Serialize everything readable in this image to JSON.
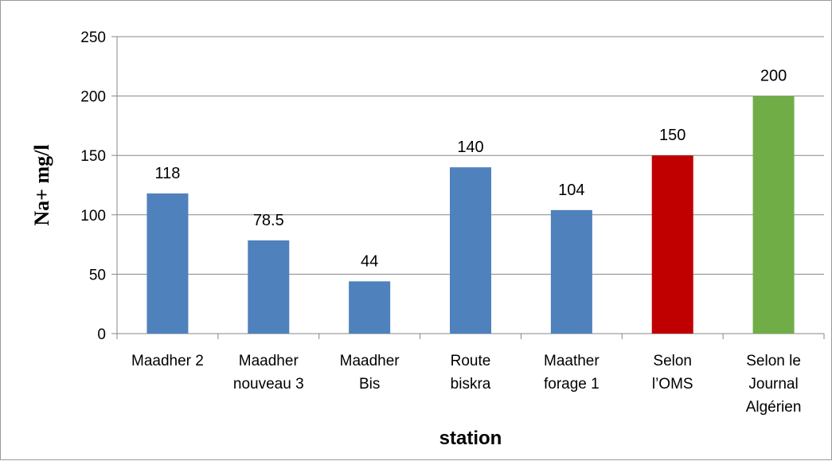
{
  "chart_data": {
    "type": "bar",
    "categories": [
      [
        "Maadher 2"
      ],
      [
        "Maadher",
        "nouveau 3"
      ],
      [
        "Maadher",
        "Bis"
      ],
      [
        "Route",
        "biskra"
      ],
      [
        "Maather",
        "forage 1"
      ],
      [
        "Selon",
        "l’OMS"
      ],
      [
        "Selon le",
        "Journal",
        "Algérien"
      ]
    ],
    "values": [
      118,
      78.5,
      44,
      140,
      104,
      150,
      200
    ],
    "data_labels": [
      "118",
      "78.5",
      "44",
      "140",
      "104",
      "150",
      "200"
    ],
    "bar_colors": [
      "#4f81bd",
      "#4f81bd",
      "#4f81bd",
      "#4f81bd",
      "#4f81bd",
      "#c00000",
      "#70ad47"
    ],
    "xlabel": "station",
    "ylabel": "Na+ mg/l",
    "ylim": [
      0,
      250
    ],
    "yticks": [
      0,
      50,
      100,
      150,
      200,
      250
    ],
    "grid": true,
    "legend": "none"
  }
}
